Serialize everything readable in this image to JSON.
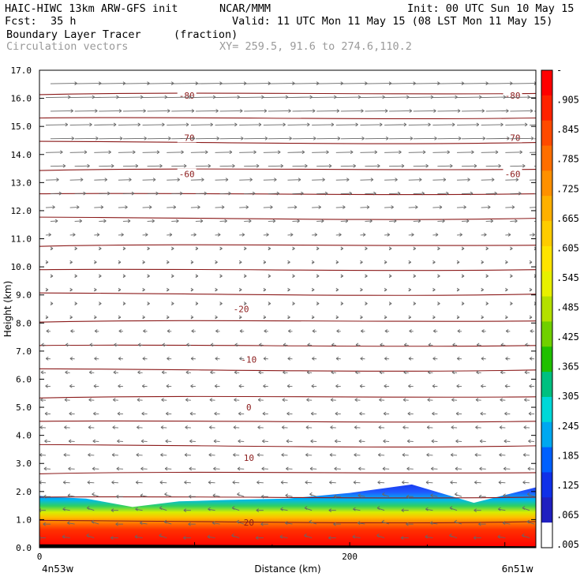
{
  "header": {
    "model": "HAIC-HIWC 13km ARW-GFS init",
    "org": "NCAR/MMM",
    "init": "Init: 00 UTC Sun 10 May 15",
    "fcst_label": "Fcst:",
    "fcst_value": "35 h",
    "valid": "Valid: 11 UTC Mon 11 May 15 (08 LST Mon 11 May 15)",
    "field_name": "Boundary Layer Tracer",
    "field_units": "(fraction)",
    "overlay_name": "Circulation vectors",
    "xy_range": "XY= 259.5, 91.6 to 274.6,110.2"
  },
  "chart_data": {
    "type": "heatmap",
    "title": "Boundary Layer Tracer",
    "ylabel": "Height (km)",
    "xlabel": "Distance (km)",
    "ylim": [
      0,
      17
    ],
    "xlim": [
      0,
      320
    ],
    "x_ticks": [
      0,
      200
    ],
    "x_left_label": "4n53w",
    "x_right_label": "6n51w",
    "y_ticks": [
      "0.0",
      "1.0",
      "2.0",
      "3.0",
      "4.0",
      "5.0",
      "6.0",
      "7.0",
      "8.0",
      "9.0",
      "10.0",
      "11.0",
      "12.0",
      "13.0",
      "14.0",
      "15.0",
      "16.0",
      "17.0"
    ],
    "colorbar": {
      "labels": [
        "-",
        ".905",
        ".845",
        ".785",
        ".725",
        ".665",
        ".605",
        ".545",
        ".485",
        ".425",
        ".365",
        ".305",
        ".245",
        ".185",
        ".125",
        ".065",
        ".005"
      ],
      "colors": [
        "#ff0000",
        "#ff2200",
        "#ff4a00",
        "#ff6e00",
        "#ff9000",
        "#ffb000",
        "#ffcc00",
        "#ffe400",
        "#e8f000",
        "#b4e000",
        "#70d000",
        "#20c000",
        "#00c080",
        "#00d8d8",
        "#00a8f0",
        "#0060ff",
        "#1030e8",
        "#2020c0",
        "#ffffff"
      ]
    },
    "tracer_profile": {
      "x_km": [
        0,
        10,
        30,
        60,
        90,
        120,
        160,
        200,
        240,
        280,
        320
      ],
      "top_km": [
        1.85,
        1.8,
        1.75,
        1.45,
        1.65,
        1.7,
        1.75,
        1.95,
        2.25,
        1.6,
        2.15
      ]
    },
    "temperature_contours": [
      {
        "label": "20",
        "y_km": 0.9
      },
      {
        "label": "10",
        "y_km": 3.2
      },
      {
        "label": "0",
        "y_km": 5.0
      },
      {
        "label": "-10",
        "y_km": 6.7
      },
      {
        "label": "-20",
        "y_km": 8.5
      },
      {
        "label": "-60",
        "y_km": 13.3
      },
      {
        "label": "-70",
        "y_km": 14.6
      },
      {
        "label": "-80",
        "y_km": 16.1
      }
    ]
  }
}
